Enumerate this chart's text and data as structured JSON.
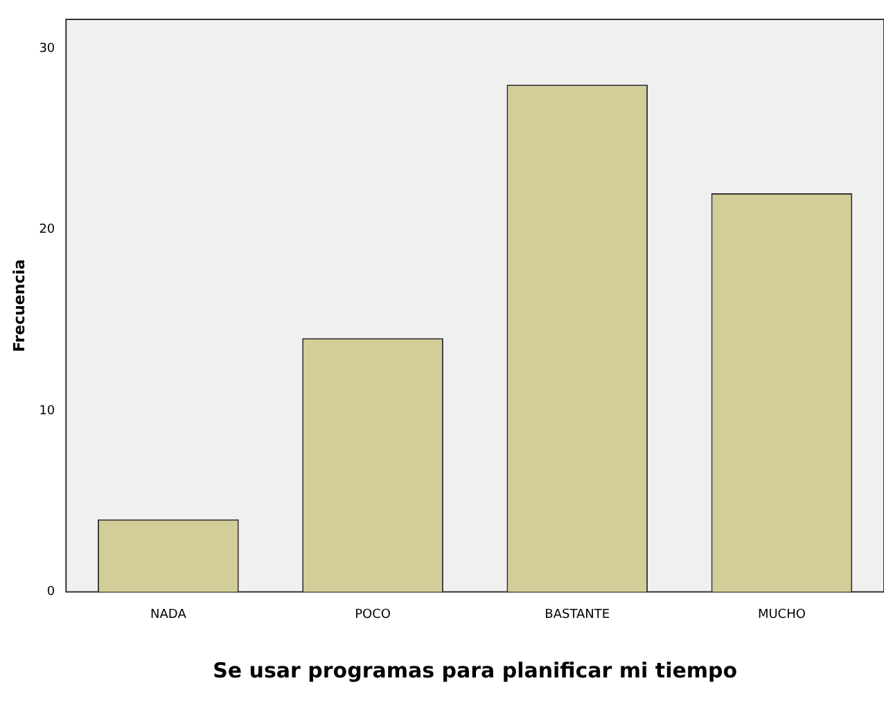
{
  "chart_data": {
    "type": "bar",
    "xlabel": "Se usar programas para planificar mi tiempo",
    "ylabel": "Frecuencia",
    "categories": [
      "NADA",
      "POCO",
      "BASTANTE",
      "MUCHO"
    ],
    "values": [
      4,
      14,
      28,
      22
    ],
    "color": "#d3ce97",
    "ylim": [
      0,
      31.6
    ],
    "yticks": [
      0,
      10,
      20,
      30
    ],
    "grid": false,
    "legend": false
  }
}
